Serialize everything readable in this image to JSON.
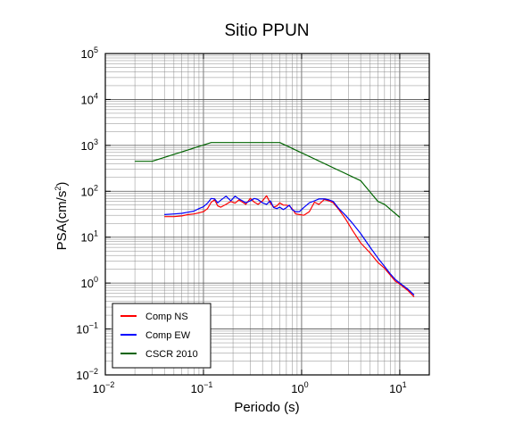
{
  "chart_data": {
    "type": "line",
    "title": "Sitio PPUN",
    "xlabel": "Periodo (s)",
    "ylabel": "PSA(cm/s²)",
    "ylabel_base": "PSA(cm/s",
    "ylabel_sup": "2",
    "ylabel_close": ")",
    "xscale": "log",
    "yscale": "log",
    "xlim": [
      0.01,
      20
    ],
    "ylim": [
      0.01,
      100000
    ],
    "grid": true,
    "legend_position": "bottom-left",
    "x_ticks": [
      {
        "value": 0.01,
        "base": "10",
        "exp": "−2"
      },
      {
        "value": 0.1,
        "base": "10",
        "exp": "−1"
      },
      {
        "value": 1,
        "base": "10",
        "exp": "0"
      },
      {
        "value": 10,
        "base": "10",
        "exp": "1"
      }
    ],
    "y_ticks": [
      {
        "value": 0.01,
        "base": "10",
        "exp": "−2"
      },
      {
        "value": 0.1,
        "base": "10",
        "exp": "−1"
      },
      {
        "value": 1,
        "base": "10",
        "exp": "0"
      },
      {
        "value": 10,
        "base": "10",
        "exp": "1"
      },
      {
        "value": 100,
        "base": "10",
        "exp": "2"
      },
      {
        "value": 1000,
        "base": "10",
        "exp": "3"
      },
      {
        "value": 10000,
        "base": "10",
        "exp": "4"
      },
      {
        "value": 100000,
        "base": "10",
        "exp": "5"
      }
    ],
    "series": [
      {
        "name": "Comp NS",
        "color": "#ff0000",
        "points": [
          [
            0.04,
            28
          ],
          [
            0.05,
            28
          ],
          [
            0.06,
            29
          ],
          [
            0.07,
            31
          ],
          [
            0.08,
            32
          ],
          [
            0.09,
            34
          ],
          [
            0.1,
            36
          ],
          [
            0.11,
            42
          ],
          [
            0.12,
            58
          ],
          [
            0.13,
            65
          ],
          [
            0.14,
            48
          ],
          [
            0.15,
            45
          ],
          [
            0.17,
            52
          ],
          [
            0.19,
            60
          ],
          [
            0.21,
            55
          ],
          [
            0.23,
            65
          ],
          [
            0.25,
            58
          ],
          [
            0.27,
            52
          ],
          [
            0.3,
            70
          ],
          [
            0.33,
            58
          ],
          [
            0.36,
            52
          ],
          [
            0.4,
            62
          ],
          [
            0.44,
            80
          ],
          [
            0.48,
            55
          ],
          [
            0.52,
            45
          ],
          [
            0.56,
            48
          ],
          [
            0.6,
            56
          ],
          [
            0.65,
            50
          ],
          [
            0.7,
            50
          ],
          [
            0.75,
            48
          ],
          [
            0.8,
            42
          ],
          [
            0.87,
            32
          ],
          [
            0.95,
            31
          ],
          [
            1.05,
            30
          ],
          [
            1.2,
            36
          ],
          [
            1.35,
            58
          ],
          [
            1.5,
            52
          ],
          [
            1.7,
            66
          ],
          [
            1.9,
            62
          ],
          [
            2.1,
            56
          ],
          [
            2.4,
            40
          ],
          [
            2.8,
            25
          ],
          [
            3.3,
            14
          ],
          [
            4,
            7.5
          ],
          [
            5,
            4.5
          ],
          [
            6,
            2.8
          ],
          [
            7,
            2.1
          ],
          [
            8,
            1.5
          ],
          [
            9,
            1.1
          ],
          [
            10,
            0.95
          ],
          [
            12,
            0.7
          ],
          [
            14,
            0.5
          ]
        ]
      },
      {
        "name": "Comp EW",
        "color": "#0000ff",
        "points": [
          [
            0.04,
            31
          ],
          [
            0.05,
            32
          ],
          [
            0.06,
            33
          ],
          [
            0.07,
            35
          ],
          [
            0.08,
            37
          ],
          [
            0.09,
            42
          ],
          [
            0.1,
            46
          ],
          [
            0.11,
            55
          ],
          [
            0.12,
            70
          ],
          [
            0.13,
            68
          ],
          [
            0.14,
            56
          ],
          [
            0.15,
            64
          ],
          [
            0.17,
            78
          ],
          [
            0.19,
            62
          ],
          [
            0.21,
            78
          ],
          [
            0.23,
            68
          ],
          [
            0.25,
            62
          ],
          [
            0.27,
            56
          ],
          [
            0.3,
            62
          ],
          [
            0.33,
            70
          ],
          [
            0.36,
            66
          ],
          [
            0.4,
            56
          ],
          [
            0.44,
            52
          ],
          [
            0.48,
            62
          ],
          [
            0.52,
            44
          ],
          [
            0.56,
            42
          ],
          [
            0.6,
            45
          ],
          [
            0.65,
            40
          ],
          [
            0.7,
            44
          ],
          [
            0.75,
            50
          ],
          [
            0.8,
            40
          ],
          [
            0.87,
            36
          ],
          [
            0.95,
            36
          ],
          [
            1.05,
            44
          ],
          [
            1.2,
            56
          ],
          [
            1.35,
            62
          ],
          [
            1.5,
            68
          ],
          [
            1.7,
            68
          ],
          [
            1.9,
            65
          ],
          [
            2.1,
            60
          ],
          [
            2.4,
            42
          ],
          [
            2.8,
            30
          ],
          [
            3.3,
            20
          ],
          [
            4,
            12
          ],
          [
            5,
            6
          ],
          [
            6,
            3.5
          ],
          [
            7,
            2.3
          ],
          [
            8,
            1.6
          ],
          [
            9,
            1.2
          ],
          [
            10,
            1
          ],
          [
            12,
            0.75
          ],
          [
            14,
            0.55
          ]
        ]
      },
      {
        "name": "CSCR 2010",
        "color": "#006400",
        "points": [
          [
            0.02,
            450
          ],
          [
            0.03,
            450
          ],
          [
            0.12,
            1150
          ],
          [
            0.6,
            1150
          ],
          [
            4,
            170
          ],
          [
            6,
            60
          ],
          [
            7,
            52
          ],
          [
            10,
            27
          ]
        ]
      }
    ]
  }
}
